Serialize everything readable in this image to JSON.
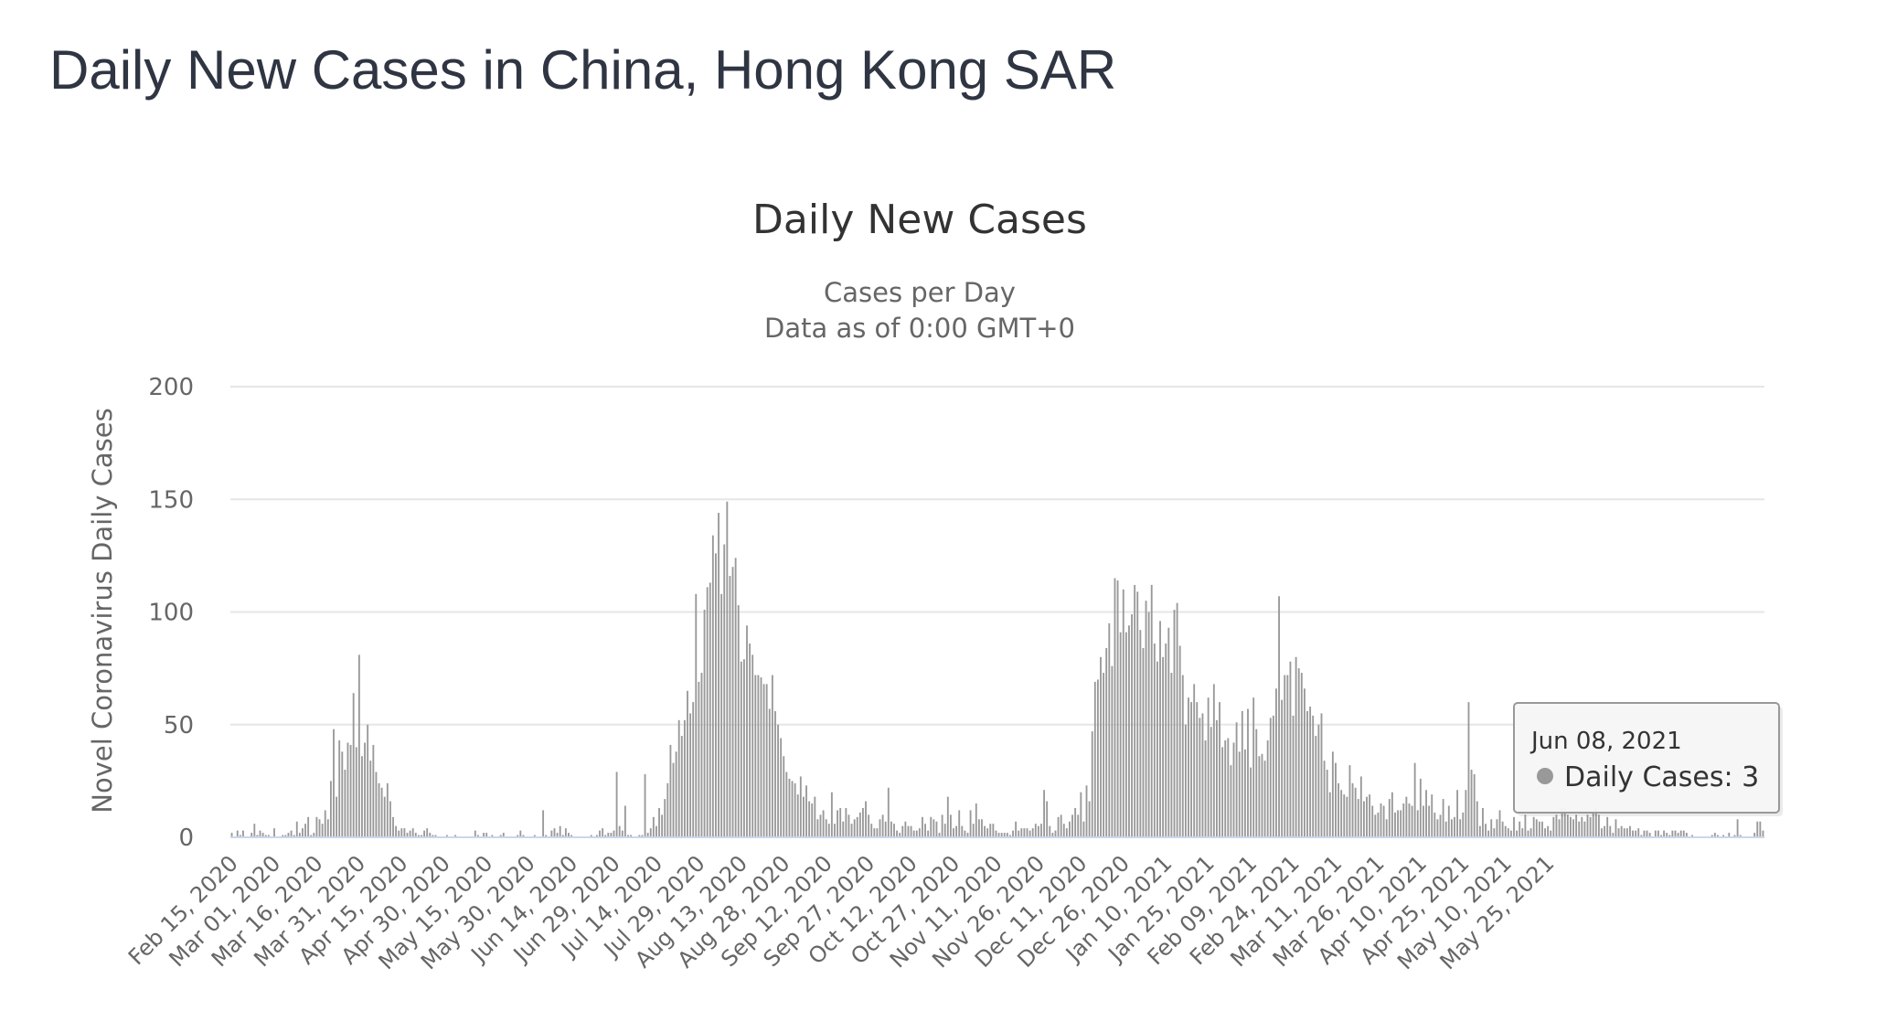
{
  "page": {
    "title": "Daily New Cases in China, Hong Kong SAR"
  },
  "chart_data": {
    "type": "bar",
    "title": "Daily New Cases",
    "subtitle": [
      "Cases per Day",
      "Data as of 0:00 GMT+0"
    ],
    "xlabel": "",
    "ylabel": "Novel Coronavirus Daily Cases",
    "ylim": [
      0,
      200
    ],
    "yticks": [
      0,
      50,
      100,
      150,
      200
    ],
    "grid": true,
    "bar_color": "#999999",
    "x_start": "Feb 15, 2020",
    "x_tick_labels": [
      "Feb 15, 2020",
      "Mar 01, 2020",
      "Mar 16, 2020",
      "Mar 31, 2020",
      "Apr 15, 2020",
      "Apr 30, 2020",
      "May 15, 2020",
      "May 30, 2020",
      "Jun 14, 2020",
      "Jun 29, 2020",
      "Jul 14, 2020",
      "Jul 29, 2020",
      "Aug 13, 2020",
      "Aug 28, 2020",
      "Sep 12, 2020",
      "Sep 27, 2020",
      "Oct 12, 2020",
      "Oct 27, 2020",
      "Nov 11, 2020",
      "Nov 26, 2020",
      "Dec 11, 2020",
      "Dec 26, 2020",
      "Jan 10, 2021",
      "Jan 25, 2021",
      "Feb 09, 2021",
      "Feb 24, 2021",
      "Mar 11, 2021",
      "Mar 26, 2021",
      "Apr 10, 2021",
      "Apr 25, 2021",
      "May 10, 2021",
      "May 25, 2021"
    ],
    "series": [
      {
        "name": "Daily Cases",
        "values": [
          2,
          0,
          3,
          1,
          3,
          0,
          0,
          2,
          6,
          1,
          3,
          2,
          1,
          1,
          0,
          4,
          0,
          0,
          1,
          1,
          2,
          3,
          1,
          7,
          2,
          4,
          6,
          9,
          1,
          2,
          9,
          8,
          6,
          12,
          8,
          25,
          48,
          18,
          43,
          38,
          30,
          42,
          41,
          64,
          40,
          81,
          36,
          42,
          50,
          34,
          41,
          29,
          24,
          22,
          18,
          24,
          16,
          9,
          5,
          3,
          4,
          4,
          2,
          3,
          4,
          2,
          1,
          1,
          3,
          4,
          2,
          1,
          1,
          0,
          0,
          0,
          1,
          0,
          0,
          1,
          0,
          0,
          0,
          0,
          0,
          0,
          3,
          1,
          0,
          2,
          2,
          0,
          1,
          0,
          0,
          1,
          2,
          0,
          0,
          0,
          0,
          1,
          3,
          1,
          0,
          0,
          0,
          1,
          0,
          0,
          12,
          1,
          0,
          3,
          4,
          2,
          5,
          1,
          4,
          2,
          1,
          0,
          0,
          0,
          0,
          0,
          0,
          1,
          0,
          1,
          3,
          4,
          1,
          2,
          2,
          3,
          29,
          5,
          3,
          14,
          1,
          1,
          0,
          0,
          1,
          1,
          28,
          2,
          4,
          9,
          5,
          13,
          10,
          17,
          24,
          41,
          33,
          38,
          52,
          45,
          52,
          65,
          55,
          60,
          108,
          69,
          73,
          101,
          111,
          113,
          134,
          126,
          144,
          108,
          130,
          149,
          116,
          120,
          124,
          103,
          78,
          79,
          94,
          86,
          81,
          72,
          72,
          71,
          68,
          68,
          57,
          72,
          56,
          50,
          44,
          36,
          29,
          26,
          25,
          24,
          19,
          27,
          18,
          23,
          16,
          15,
          18,
          8,
          10,
          12,
          8,
          6,
          20,
          6,
          12,
          13,
          7,
          13,
          10,
          6,
          8,
          9,
          11,
          13,
          16,
          10,
          6,
          4,
          4,
          8,
          10,
          7,
          22,
          7,
          6,
          3,
          2,
          5,
          7,
          5,
          5,
          3,
          3,
          4,
          9,
          6,
          3,
          9,
          8,
          7,
          2,
          10,
          6,
          18,
          10,
          4,
          5,
          12,
          5,
          3,
          2,
          12,
          6,
          15,
          8,
          8,
          5,
          4,
          6,
          6,
          3,
          2,
          2,
          2,
          2,
          1,
          3,
          7,
          3,
          4,
          4,
          4,
          3,
          4,
          6,
          5,
          6,
          21,
          16,
          5,
          2,
          3,
          9,
          10,
          6,
          4,
          7,
          10,
          13,
          10,
          20,
          7,
          23,
          16,
          47,
          69,
          70,
          80,
          73,
          84,
          95,
          76,
          115,
          114,
          91,
          110,
          91,
          94,
          99,
          112,
          109,
          92,
          84,
          105,
          100,
          112,
          86,
          78,
          96,
          80,
          86,
          93,
          73,
          101,
          104,
          85,
          72,
          50,
          62,
          60,
          68,
          60,
          53,
          55,
          43,
          62,
          49,
          68,
          52,
          60,
          40,
          43,
          44,
          32,
          42,
          51,
          38,
          56,
          39,
          57,
          31,
          62,
          48,
          36,
          37,
          34,
          43,
          53,
          54,
          66,
          107,
          61,
          72,
          72,
          78,
          54,
          80,
          75,
          73,
          66,
          56,
          58,
          54,
          45,
          50,
          55,
          34,
          30,
          20,
          38,
          33,
          24,
          21,
          19,
          18,
          32,
          24,
          22,
          17,
          27,
          16,
          18,
          19,
          14,
          10,
          11,
          15,
          14,
          8,
          17,
          20,
          11,
          12,
          12,
          15,
          18,
          15,
          14,
          33,
          12,
          26,
          14,
          21,
          14,
          19,
          11,
          8,
          10,
          17,
          7,
          14,
          8,
          9,
          21,
          8,
          11,
          21,
          60,
          30,
          28,
          16,
          5,
          13,
          6,
          3,
          8,
          4,
          8,
          12,
          7,
          5,
          4,
          3,
          9,
          3,
          7,
          4,
          10,
          3,
          4,
          9,
          8,
          7,
          7,
          4,
          5,
          3,
          9,
          10,
          8,
          13,
          13,
          10,
          9,
          8,
          10,
          7,
          9,
          7,
          10,
          9,
          11,
          13,
          10,
          4,
          5,
          9,
          5,
          2,
          8,
          4,
          5,
          4,
          4,
          5,
          3,
          3,
          4,
          1,
          3,
          3,
          2,
          0,
          3,
          3,
          1,
          3,
          2,
          1,
          3,
          3,
          2,
          3,
          3,
          2,
          0,
          1,
          0,
          0,
          0,
          0,
          0,
          0,
          1,
          2,
          1,
          0,
          1,
          0,
          2,
          0,
          1,
          8,
          1,
          0,
          0,
          0,
          0,
          2,
          7,
          7,
          3
        ]
      }
    ],
    "tooltip": {
      "date": "Jun 08, 2021",
      "label": "Daily Cases: 3"
    }
  }
}
